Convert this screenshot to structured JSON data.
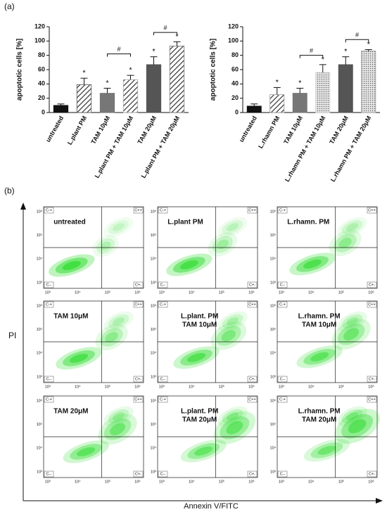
{
  "panel_labels": {
    "a": "(a)",
    "b": "(b)"
  },
  "chart_data": [
    {
      "type": "bar",
      "ylabel": "apoptotic cells [%]",
      "categories": [
        "untreated",
        "L.plant PM",
        "TAM 10μM",
        "L.plant PM + TAM 10μM",
        "TAM 20μM",
        "L.plant PM + TAM 20μM"
      ],
      "values": [
        10,
        39,
        27,
        46,
        67,
        93
      ],
      "errors": [
        2,
        9,
        7,
        6,
        11,
        6
      ],
      "colors": [
        "#111111",
        "#555555",
        "#777777",
        "#aaaaaa",
        "#555555",
        "#777777"
      ],
      "patterns": [
        "none",
        "hatch",
        "none",
        "hatch",
        "none",
        "hatch"
      ],
      "significance": [
        {
          "index": 1,
          "label": "*"
        },
        {
          "index": 2,
          "label": "*"
        },
        {
          "index": 3,
          "label": "*"
        },
        {
          "index": 4,
          "label": "*"
        },
        {
          "index": 5,
          "label": "*"
        }
      ],
      "brackets": [
        {
          "from": 2,
          "to": 3,
          "y": 82,
          "label": "#"
        },
        {
          "from": 4,
          "to": 5,
          "y": 112,
          "label": "#"
        }
      ],
      "ylim": [
        0,
        120
      ],
      "yticks": [
        0,
        20,
        40,
        60,
        80,
        100,
        120
      ]
    },
    {
      "type": "bar",
      "ylabel": "apoptotic cells [%]",
      "categories": [
        "untreated",
        "L.rhamn PM",
        "TAM 10μM",
        "L.rhamn PM + TAM 10μM",
        "TAM 20μM",
        "L.rhamn PM + TAM 20μM"
      ],
      "values": [
        9,
        25,
        27,
        56,
        67,
        86
      ],
      "errors": [
        3,
        10,
        7,
        11,
        11,
        2
      ],
      "colors": [
        "#111111",
        "#999999",
        "#777777",
        "#cccccc",
        "#555555",
        "#999999"
      ],
      "patterns": [
        "none",
        "hatch",
        "none",
        "dots",
        "none",
        "dots"
      ],
      "significance": [
        {
          "index": 1,
          "label": "*"
        },
        {
          "index": 2,
          "label": "*"
        },
        {
          "index": 3,
          "label": "*"
        },
        {
          "index": 4,
          "label": "*"
        },
        {
          "index": 5,
          "label": "*"
        }
      ],
      "brackets": [
        {
          "from": 2,
          "to": 3,
          "y": 80,
          "label": "#"
        },
        {
          "from": 4,
          "to": 5,
          "y": 102,
          "label": "#"
        }
      ],
      "ylim": [
        0,
        120
      ],
      "yticks": [
        0,
        20,
        40,
        60,
        80,
        100,
        120
      ]
    }
  ],
  "flow": {
    "y_label": "PI",
    "x_label": "Annexin V/FITC",
    "quadrants": [
      "C-+",
      "C++",
      "C--",
      "C+-"
    ],
    "x_ticks": [
      "10³",
      "10⁴",
      "10⁵",
      "10⁶"
    ],
    "y_ticks": [
      "10⁶",
      "10⁵",
      "10⁴",
      "10³"
    ],
    "panels": [
      {
        "lines": [
          "untreated"
        ]
      },
      {
        "lines": [
          "L.plant PM"
        ]
      },
      {
        "lines": [
          "L.rhamn. PM"
        ]
      },
      {
        "lines": [
          "TAM 10μM"
        ]
      },
      {
        "lines": [
          "L.plant. PM",
          "TAM 10μM"
        ]
      },
      {
        "lines": [
          "L.rhamn. PM",
          "TAM 10μM"
        ]
      },
      {
        "lines": [
          "TAM 20μM"
        ]
      },
      {
        "lines": [
          "L.plant. PM",
          "TAM 20μM"
        ]
      },
      {
        "lines": [
          "L.rhamn. PM",
          "TAM 20μM"
        ]
      }
    ]
  }
}
